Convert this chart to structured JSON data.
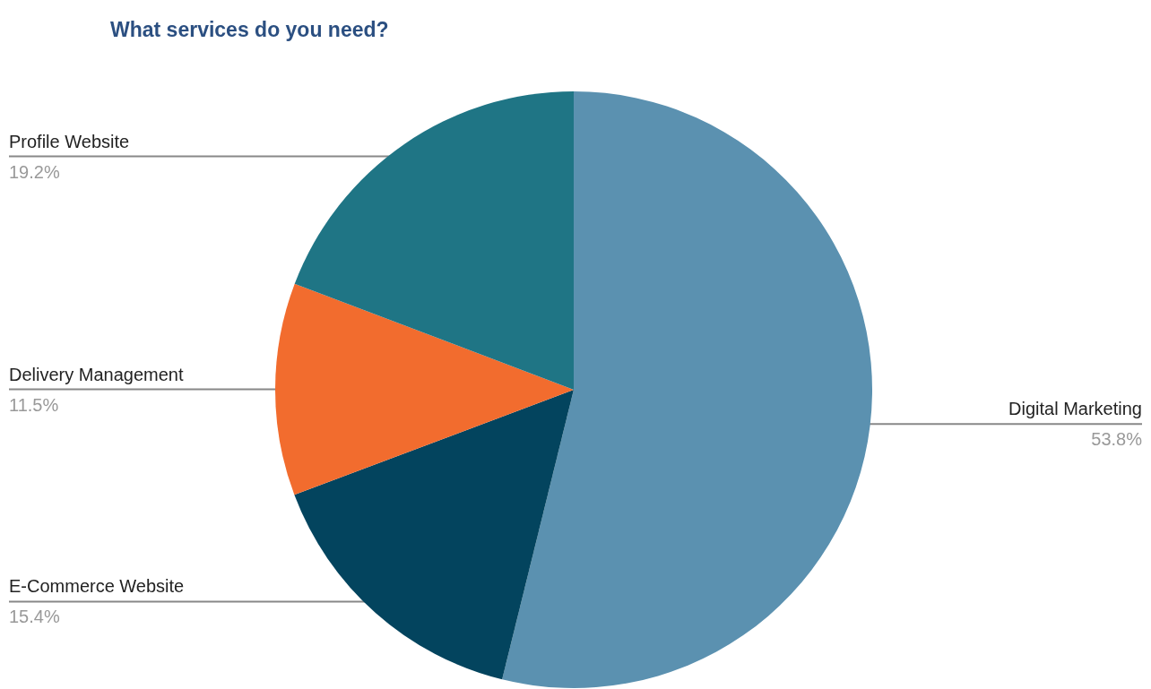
{
  "chart_data": {
    "type": "pie",
    "title": "What services do you need?",
    "categories": [
      "Digital Marketing",
      "E-Commerce Website",
      "Delivery Management",
      "Profile Website"
    ],
    "values": [
      53.8,
      15.4,
      11.5,
      19.2
    ],
    "value_labels": [
      "53.8%",
      "15.4%",
      "11.5%",
      "19.2%"
    ],
    "colors": [
      "#5b91b0",
      "#03445e",
      "#f26c2e",
      "#1f7585"
    ],
    "legend": false
  }
}
